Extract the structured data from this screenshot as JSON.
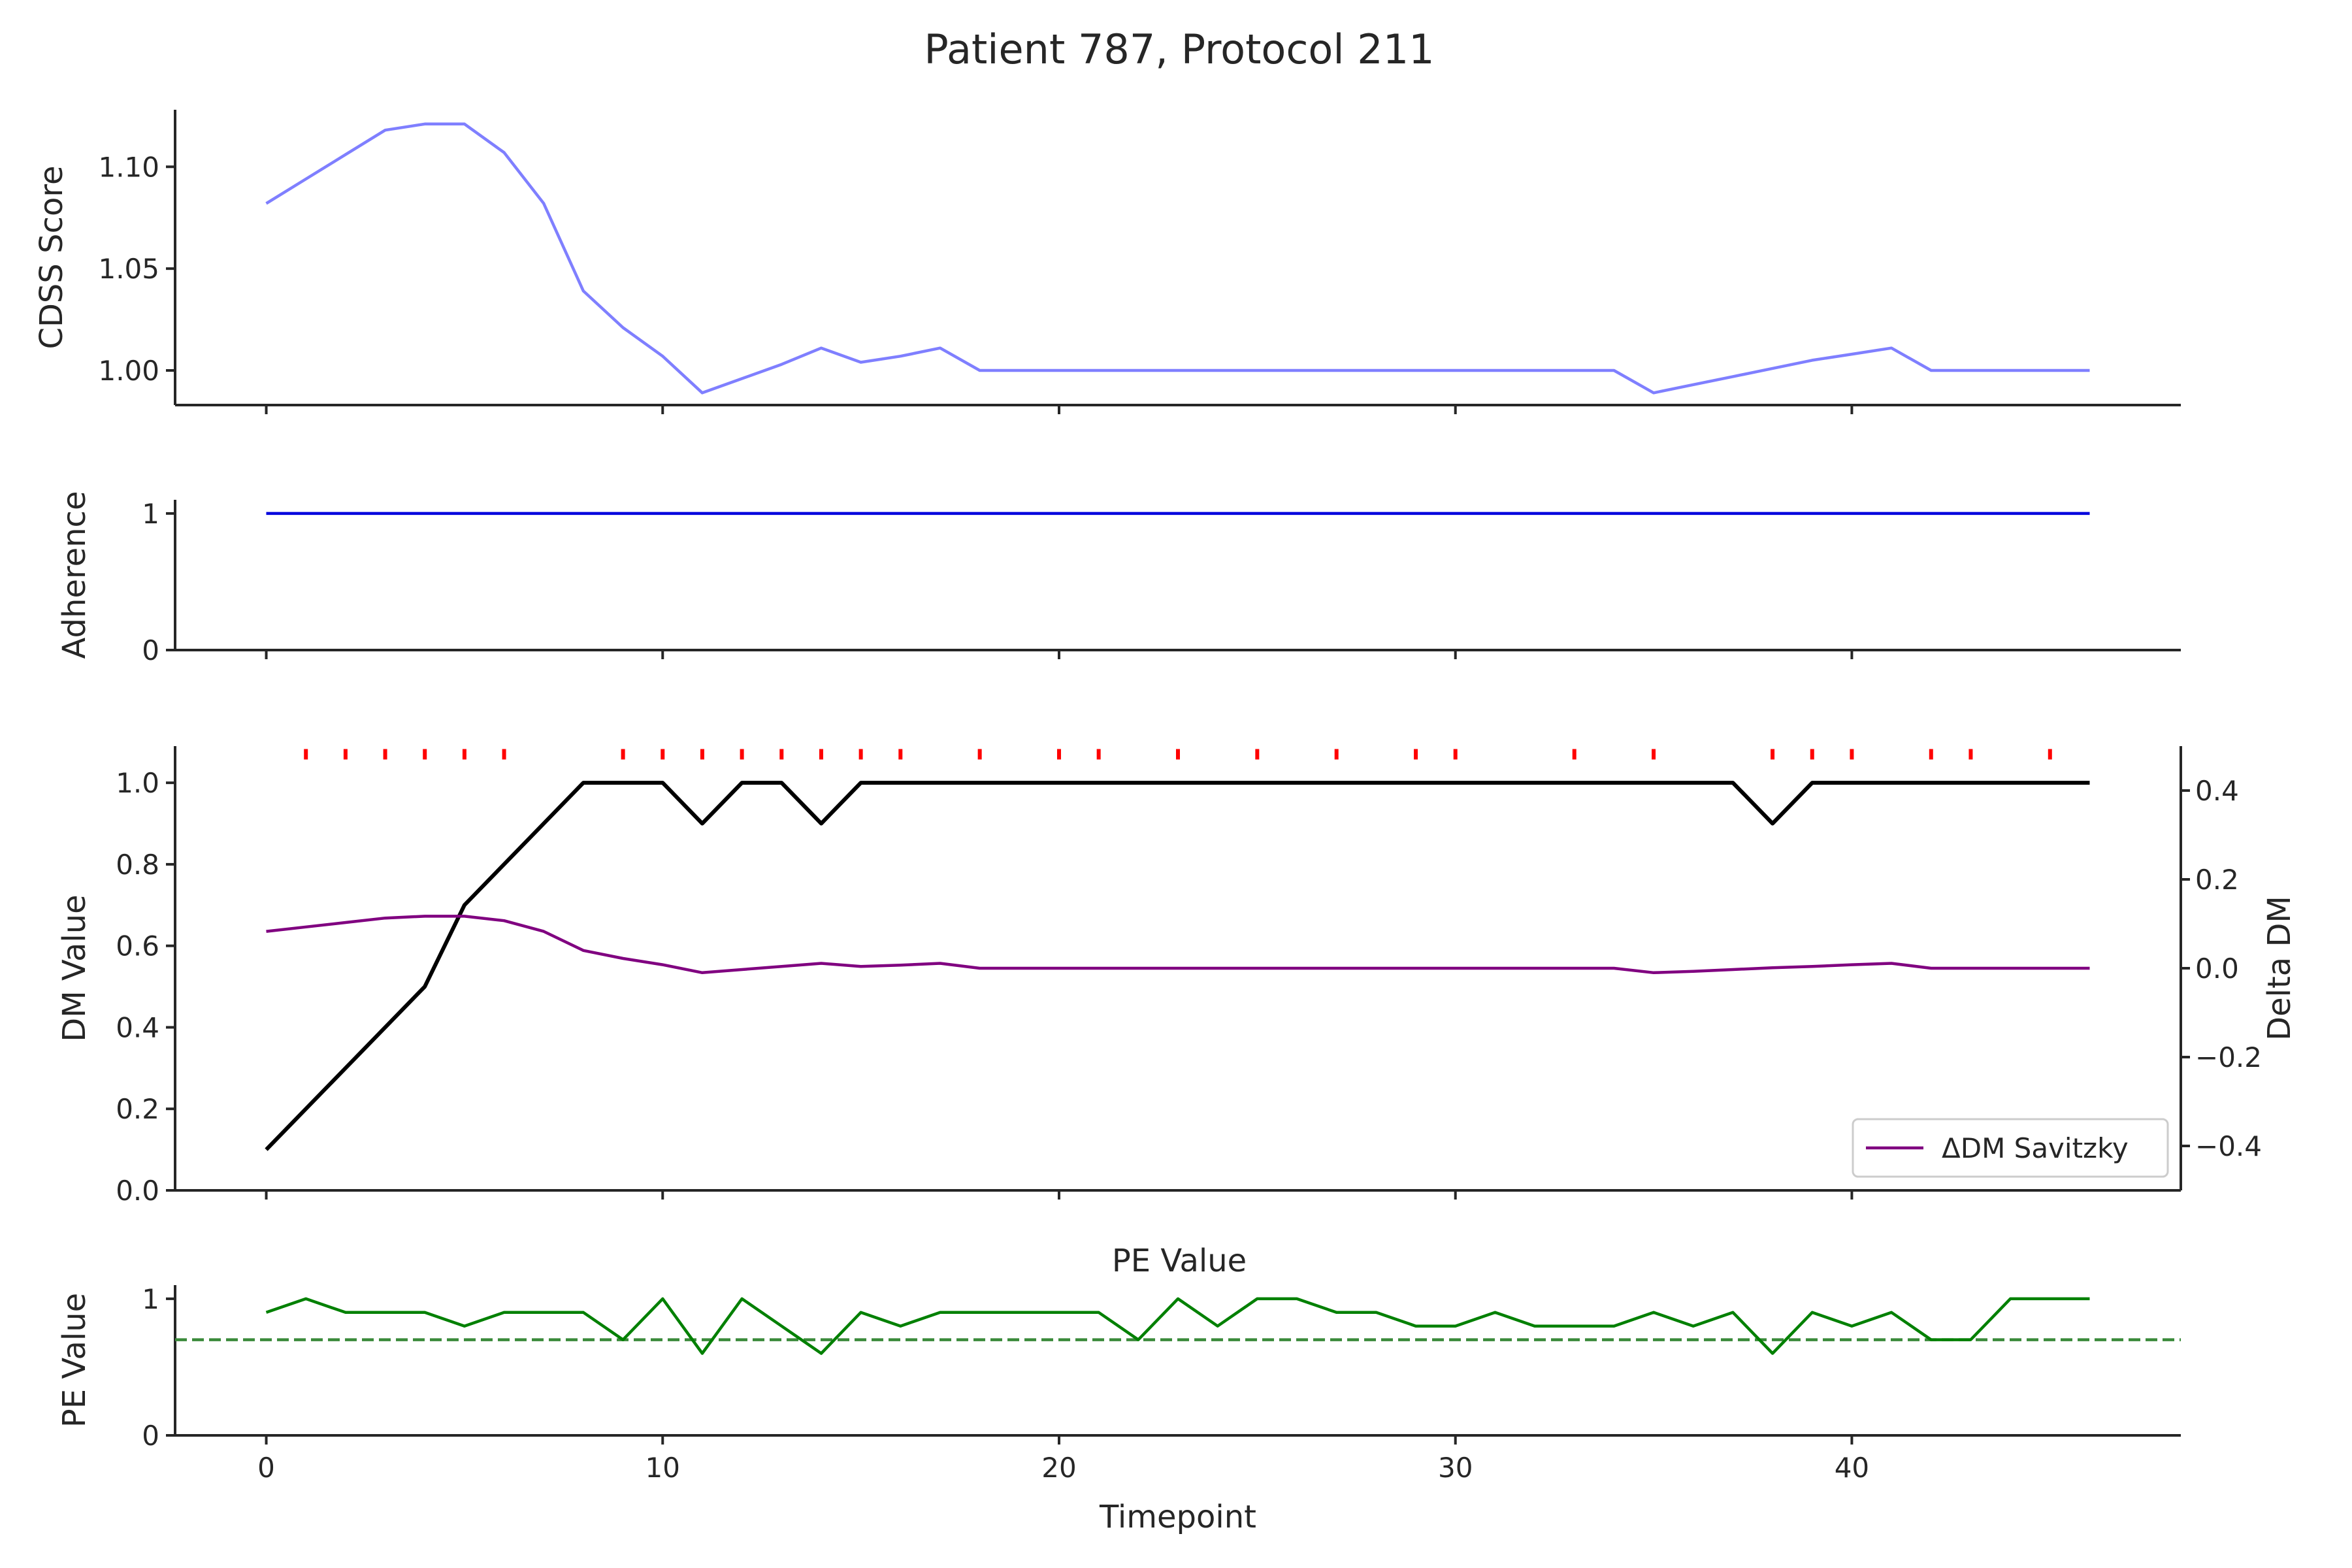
{
  "title": "Patient 787, Protocol 211",
  "chart_data": [
    {
      "id": "cdss",
      "type": "line",
      "ylabel": "CDSS Score",
      "xlim": [
        -2.3,
        48.3
      ],
      "ylim": [
        0.983,
        1.128
      ],
      "yticks": [
        1.0,
        1.05,
        1.1
      ],
      "ytick_labels": [
        "1.00",
        "1.05",
        "1.10"
      ],
      "series": [
        {
          "color": "#7f7fff",
          "x": [
            0,
            1,
            2,
            3,
            4,
            5,
            6,
            7,
            8,
            9,
            10,
            11,
            12,
            13,
            14,
            15,
            16,
            17,
            18,
            19,
            20,
            21,
            22,
            23,
            24,
            25,
            26,
            27,
            28,
            29,
            30,
            31,
            32,
            33,
            34,
            35,
            36,
            37,
            38,
            39,
            40,
            41,
            42,
            43,
            44,
            45,
            46
          ],
          "y": [
            1.082,
            1.094,
            1.106,
            1.118,
            1.121,
            1.121,
            1.107,
            1.082,
            1.039,
            1.021,
            1.007,
            0.989,
            0.996,
            1.003,
            1.011,
            1.004,
            1.007,
            1.011,
            1.0,
            1.0,
            1.0,
            1.0,
            1.0,
            1.0,
            1.0,
            1.0,
            1.0,
            1.0,
            1.0,
            1.0,
            1.0,
            1.0,
            1.0,
            1.0,
            1.0,
            0.989,
            0.993,
            0.997,
            1.001,
            1.005,
            1.008,
            1.011,
            1.0,
            1.0,
            1.0,
            1.0,
            1.0
          ]
        }
      ]
    },
    {
      "id": "adherence",
      "type": "line",
      "ylabel": "Adherence",
      "xlim": [
        -2.3,
        48.3
      ],
      "ylim": [
        0,
        1.1
      ],
      "yticks": [
        0,
        1
      ],
      "ytick_labels": [
        "0",
        "1"
      ],
      "series": [
        {
          "color": "#0000dd",
          "x": [
            0,
            46
          ],
          "y": [
            1,
            1
          ]
        }
      ]
    },
    {
      "id": "dm",
      "type": "line",
      "ylabel": "DM Value",
      "ylabel_right": "Delta DM",
      "xlim": [
        -2.3,
        48.3
      ],
      "ylim": [
        0,
        1.09
      ],
      "yticks": [
        0.0,
        0.2,
        0.4,
        0.6,
        0.8,
        1.0
      ],
      "ytick_labels": [
        "0.0",
        "0.2",
        "0.4",
        "0.6",
        "0.8",
        "1.0"
      ],
      "ylim_right": [
        -0.5,
        0.5
      ],
      "yticks_right": [
        -0.4,
        -0.2,
        0.0,
        0.2,
        0.4
      ],
      "ytick_labels_right": [
        "−0.4",
        "−0.2",
        "0.0",
        "0.2",
        "0.4"
      ],
      "series": [
        {
          "color": "#000000",
          "x": [
            0,
            4,
            5,
            8,
            10,
            11,
            12,
            13,
            14,
            15,
            37,
            38,
            39,
            46
          ],
          "y": [
            0.1,
            0.5,
            0.7,
            1.0,
            1.0,
            0.9,
            1.0,
            1.0,
            0.9,
            1.0,
            1.0,
            0.9,
            1.0,
            1.0
          ]
        },
        {
          "name": "ΔDM Savitzky",
          "color": "#800080",
          "axis": "right",
          "x": [
            0,
            1,
            2,
            3,
            4,
            5,
            6,
            7,
            8,
            9,
            10,
            11,
            12,
            13,
            14,
            15,
            16,
            17,
            18,
            19,
            20,
            21,
            22,
            23,
            24,
            25,
            26,
            27,
            28,
            29,
            30,
            31,
            32,
            33,
            34,
            35,
            36,
            37,
            38,
            39,
            40,
            41,
            42,
            43,
            44,
            45,
            46
          ],
          "y": [
            0.083,
            0.093,
            0.103,
            0.113,
            0.117,
            0.117,
            0.107,
            0.083,
            0.04,
            0.022,
            0.008,
            -0.01,
            -0.003,
            0.004,
            0.011,
            0.004,
            0.007,
            0.011,
            0.0,
            0.0,
            0.0,
            0.0,
            0.0,
            0.0,
            0.0,
            0.0,
            0.0,
            0.0,
            0.0,
            0.0,
            0.0,
            0.0,
            0.0,
            0.0,
            0.0,
            -0.01,
            -0.007,
            -0.003,
            0.001,
            0.004,
            0.008,
            0.011,
            0.0,
            0.0,
            0.0,
            0.0,
            0.0
          ]
        }
      ],
      "markers": {
        "color": "#ff0000",
        "y": 1.07,
        "x": [
          1,
          2,
          3,
          4,
          5,
          6,
          9,
          10,
          11,
          12,
          13,
          14,
          15,
          16,
          18,
          20,
          21,
          23,
          25,
          27,
          29,
          30,
          33,
          35,
          38,
          39,
          40,
          42,
          43,
          45
        ]
      },
      "legend": {
        "position": "lower-right",
        "entries": [
          "ΔDM Savitzky"
        ]
      }
    },
    {
      "id": "pe",
      "type": "line",
      "subtitle": "PE Value",
      "ylabel": "PE Value",
      "xlabel": "Timepoint",
      "xlim": [
        -2.3,
        48.3
      ],
      "ylim": [
        0,
        1.1
      ],
      "yticks": [
        0,
        1
      ],
      "ytick_labels": [
        "0",
        "1"
      ],
      "xticks": [
        0,
        10,
        20,
        30,
        40
      ],
      "xtick_labels": [
        "0",
        "10",
        "20",
        "30",
        "40"
      ],
      "series": [
        {
          "color": "#008000",
          "x": [
            0,
            1,
            2,
            3,
            4,
            5,
            6,
            7,
            8,
            9,
            10,
            11,
            12,
            13,
            14,
            15,
            16,
            17,
            18,
            19,
            20,
            21,
            22,
            23,
            24,
            25,
            26,
            27,
            28,
            29,
            30,
            31,
            32,
            33,
            34,
            35,
            36,
            37,
            38,
            39,
            40,
            41,
            42,
            43,
            44,
            45,
            46
          ],
          "y": [
            0.9,
            1.0,
            0.9,
            0.9,
            0.9,
            0.8,
            0.9,
            0.9,
            0.9,
            0.7,
            1.0,
            0.6,
            1.0,
            0.8,
            0.6,
            0.9,
            0.8,
            0.9,
            0.9,
            0.9,
            0.9,
            0.9,
            0.7,
            1.0,
            0.8,
            1.0,
            1.0,
            0.9,
            0.9,
            0.8,
            0.8,
            0.9,
            0.8,
            0.8,
            0.8,
            0.9,
            0.8,
            0.9,
            0.6,
            0.9,
            0.8,
            0.9,
            0.7,
            0.7,
            1.0,
            1.0,
            1.0
          ]
        }
      ],
      "reference_line": {
        "y": 0.7,
        "color": "#3a8a3a",
        "style": "dashed"
      }
    }
  ]
}
